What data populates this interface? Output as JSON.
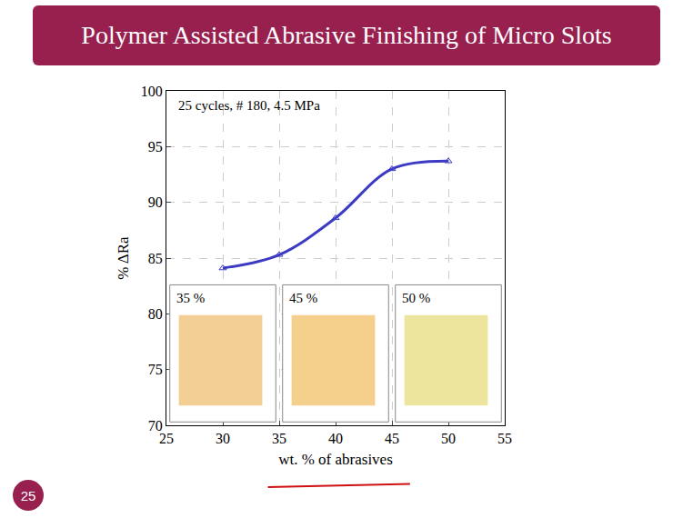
{
  "slide": {
    "title": "Polymer Assisted Abrasive Finishing of Micro Slots",
    "page": "25"
  },
  "chart_data": {
    "type": "line",
    "x": [
      30,
      35,
      40,
      45,
      50
    ],
    "values": [
      84.1,
      85.3,
      88.6,
      93.0,
      93.7
    ],
    "color": "#3b3bc4",
    "marker": "triangle-up",
    "line_style": "solid",
    "x_label": "wt. % of abrasives",
    "y_label": "% ΔRa",
    "xlim": [
      25,
      55
    ],
    "xticks": [
      25,
      30,
      35,
      40,
      45,
      50,
      55
    ],
    "ylim": [
      70,
      100
    ],
    "yticks": [
      70,
      75,
      80,
      85,
      90,
      95,
      100
    ],
    "grid": true,
    "annotation": "25 cycles, # 180, 4.5 MPa",
    "inset_labels": [
      "35 %",
      "45 %",
      "50 %"
    ]
  }
}
